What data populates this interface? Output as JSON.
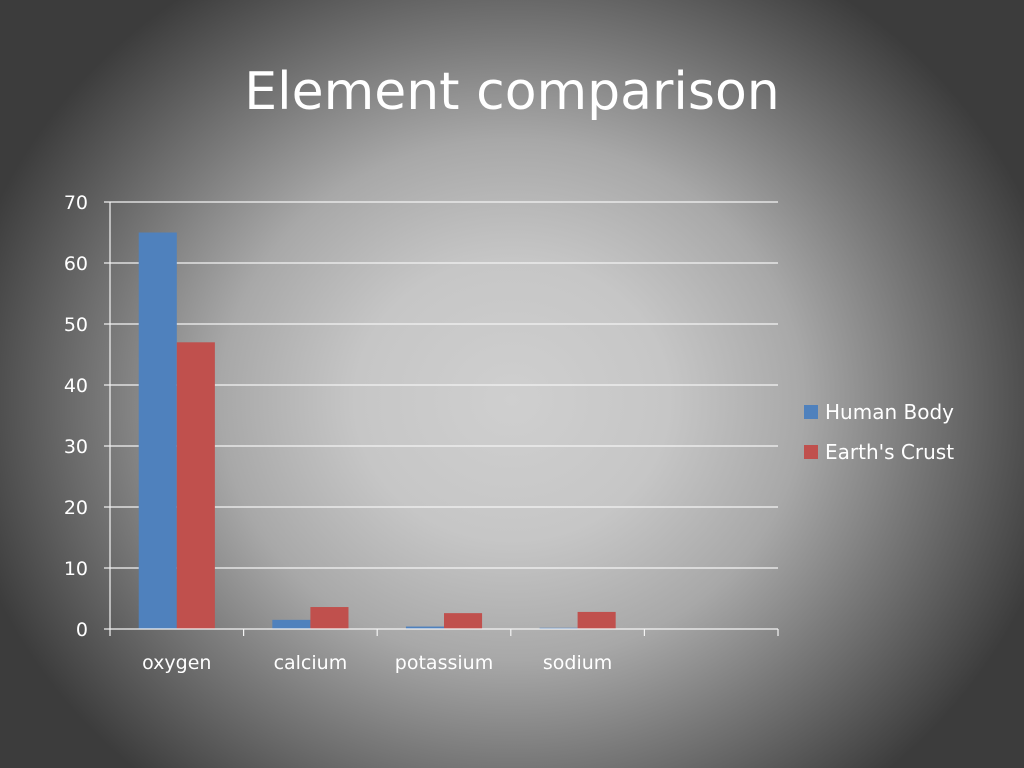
{
  "title": "Element comparison",
  "chart_data": {
    "type": "bar",
    "categories": [
      "oxygen",
      "calcium",
      "potassium",
      "sodium",
      ""
    ],
    "series": [
      {
        "name": "Human Body",
        "color": "#4f81bd",
        "values": [
          65,
          1.5,
          0.4,
          0.2,
          null
        ]
      },
      {
        "name": "Earth's Crust",
        "color": "#c0504d",
        "values": [
          47,
          3.6,
          2.6,
          2.8,
          null
        ]
      }
    ],
    "ylim": [
      0,
      70
    ],
    "yticks": [
      0,
      10,
      20,
      30,
      40,
      50,
      60,
      70
    ],
    "grid": true,
    "legend": "right",
    "xlabel": "",
    "ylabel": ""
  }
}
